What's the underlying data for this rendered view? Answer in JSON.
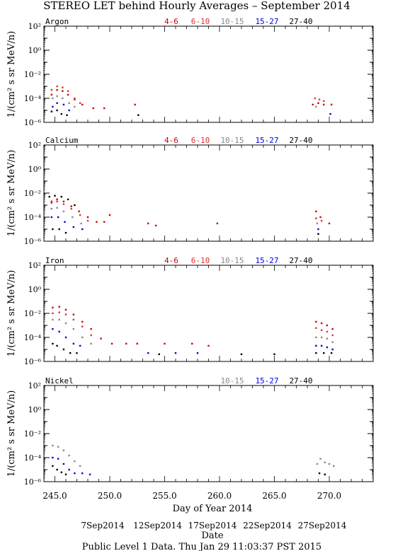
{
  "title": "STEREO LET behind Hourly Averages – September 2014",
  "ylabel": "1/(cm² s sr MeV/n)",
  "xlabel": "Day of Year 2014",
  "date_label": "Date",
  "footer": "Public Level 1 Data. Thu Jan 29 11:03:37 PST 2015",
  "x_ticks": [
    "245.0",
    "250.0",
    "255.0",
    "260.0",
    "265.0",
    "270.0"
  ],
  "date_ticks": [
    "7Sep2014",
    "12Sep2014",
    "17Sep2014",
    "22Sep2014",
    "27Sep2014"
  ],
  "colors": {
    "4-6": "#cc0000",
    "6-10": "#e23030",
    "10-15": "#888888",
    "15-27": "#0000dd",
    "27-40": "#000000"
  },
  "chart_data": [
    {
      "type": "scatter",
      "panel": "Argon",
      "ylabel": "1/(cm² s sr MeV/n)",
      "yscale": "log",
      "ylim": [
        1e-06,
        100
      ],
      "xlim": [
        244.0,
        274.0
      ],
      "y_ticks": [
        "10²",
        "10⁰",
        "10⁻²",
        "10⁻⁴",
        "10⁻⁶"
      ],
      "legend": [
        "4-6",
        "6-10",
        "10-15",
        "15-27",
        "27-40"
      ],
      "series": [
        {
          "name": "4-6",
          "color": "#cc0000",
          "points": [
            [
              244.7,
              0.0002
            ],
            [
              245.2,
              0.0005
            ],
            [
              245.7,
              0.0004
            ],
            [
              246.2,
              0.0002
            ],
            [
              246.8,
              8e-05
            ],
            [
              247.5,
              3e-05
            ],
            [
              248.5,
              1.5e-05
            ],
            [
              249.5,
              1.5e-05
            ],
            [
              252.3,
              3e-05
            ],
            [
              268.5,
              3e-05
            ],
            [
              269.0,
              4e-05
            ],
            [
              269.5,
              3e-05
            ],
            [
              270.2,
              3e-05
            ]
          ]
        },
        {
          "name": "6-10",
          "color": "#e23030",
          "points": [
            [
              244.7,
              0.0005
            ],
            [
              245.2,
              0.001
            ],
            [
              245.7,
              0.0008
            ],
            [
              246.2,
              0.0004
            ],
            [
              246.8,
              0.0001
            ],
            [
              247.3,
              4e-05
            ],
            [
              268.7,
              0.0001
            ],
            [
              269.1,
              8e-05
            ],
            [
              269.5,
              6e-05
            ]
          ]
        },
        {
          "name": "10-15",
          "color": "#888888",
          "points": [
            [
              244.8,
              0.0001
            ],
            [
              245.2,
              0.00015
            ],
            [
              245.7,
              0.0001
            ],
            [
              246.3,
              4e-05
            ],
            [
              246.8,
              2e-05
            ],
            [
              268.8,
              2e-05
            ]
          ]
        },
        {
          "name": "15-27",
          "color": "#0000dd",
          "points": [
            [
              244.8,
              2e-05
            ],
            [
              245.2,
              4e-05
            ],
            [
              245.8,
              3e-05
            ],
            [
              246.3,
              1e-05
            ],
            [
              270.1,
              5e-06
            ]
          ]
        },
        {
          "name": "27-40",
          "color": "#000000",
          "points": [
            [
              244.7,
              8e-06
            ],
            [
              245.2,
              1e-05
            ],
            [
              245.6,
              5e-06
            ],
            [
              246.1,
              4e-06
            ],
            [
              252.6,
              4e-06
            ]
          ]
        }
      ]
    },
    {
      "type": "scatter",
      "panel": "Calcium",
      "ylabel": "1/(cm² s sr MeV/n)",
      "yscale": "log",
      "ylim": [
        1e-06,
        100
      ],
      "xlim": [
        244.0,
        274.0
      ],
      "y_ticks": [
        "10²",
        "10⁰",
        "10⁻²",
        "10⁻⁴",
        "10⁻⁶"
      ],
      "legend": [
        "4-6",
        "6-10",
        "10-15",
        "15-27",
        "27-40"
      ],
      "series": [
        {
          "name": "4-6",
          "color": "#cc0000",
          "points": [
            [
              244.7,
              0.002
            ],
            [
              245.2,
              0.003
            ],
            [
              245.8,
              0.002
            ],
            [
              246.5,
              0.0008
            ],
            [
              247.2,
              0.0003
            ],
            [
              248.0,
              0.0001
            ],
            [
              248.8,
              4e-05
            ],
            [
              249.5,
              4e-05
            ],
            [
              250.0,
              0.00015
            ],
            [
              253.5,
              3e-05
            ],
            [
              254.2,
              2e-05
            ],
            [
              259.8,
              3e-05
            ],
            [
              268.8,
              0.0003
            ],
            [
              269.2,
              0.0001
            ],
            [
              270.0,
              3e-05
            ]
          ]
        },
        {
          "name": "6-10",
          "color": "#e23030",
          "points": [
            [
              244.7,
              0.0015
            ],
            [
              245.2,
              0.002
            ],
            [
              245.8,
              0.0012
            ],
            [
              246.5,
              0.0005
            ],
            [
              247.3,
              0.00015
            ],
            [
              248.0,
              5e-05
            ],
            [
              268.8,
              8e-05
            ],
            [
              269.3,
              5e-05
            ]
          ]
        },
        {
          "name": "10-15",
          "color": "#888888",
          "points": [
            [
              244.7,
              0.0005
            ],
            [
              245.2,
              0.0006
            ],
            [
              245.8,
              0.0003
            ],
            [
              246.6,
              0.0001
            ],
            [
              247.4,
              3e-05
            ],
            [
              268.9,
              3e-05
            ]
          ]
        },
        {
          "name": "15-27",
          "color": "#0000dd",
          "points": [
            [
              244.7,
              0.0001
            ],
            [
              245.3,
              0.0001
            ],
            [
              245.9,
              4e-05
            ],
            [
              246.7,
              1.5e-05
            ],
            [
              247.5,
              1e-05
            ],
            [
              269.0,
              1e-05
            ]
          ]
        },
        {
          "name": "27-40",
          "color": "#000000",
          "points": [
            [
              244.5,
              0.005
            ],
            [
              245.0,
              0.006
            ],
            [
              245.6,
              0.005
            ],
            [
              246.2,
              0.003
            ],
            [
              246.8,
              0.001
            ],
            [
              244.8,
              1e-05
            ],
            [
              245.4,
              1e-05
            ],
            [
              246.0,
              5e-06
            ],
            [
              269.0,
              4e-06
            ]
          ]
        }
      ]
    },
    {
      "type": "scatter",
      "panel": "Iron",
      "ylabel": "1/(cm² s sr MeV/n)",
      "yscale": "log",
      "ylim": [
        1e-06,
        100
      ],
      "xlim": [
        244.0,
        274.0
      ],
      "y_ticks": [
        "10²",
        "10⁰",
        "10⁻²",
        "10⁻⁴",
        "10⁻⁶"
      ],
      "legend": [
        "4-6",
        "6-10",
        "10-15",
        "15-27",
        "27-40"
      ],
      "series": [
        {
          "name": "4-6",
          "color": "#cc0000",
          "points": [
            [
              244.8,
              0.03
            ],
            [
              245.4,
              0.035
            ],
            [
              246.0,
              0.02
            ],
            [
              246.7,
              0.008
            ],
            [
              247.5,
              0.002
            ],
            [
              248.3,
              0.0005
            ],
            [
              249.2,
              8e-05
            ],
            [
              250.2,
              3e-05
            ],
            [
              251.5,
              3e-05
            ],
            [
              252.5,
              3e-05
            ],
            [
              255.0,
              3e-05
            ],
            [
              257.5,
              3e-05
            ],
            [
              259.0,
              2e-05
            ],
            [
              268.8,
              0.002
            ],
            [
              269.3,
              0.0015
            ],
            [
              269.8,
              0.001
            ],
            [
              270.3,
              0.0005
            ]
          ]
        },
        {
          "name": "6-10",
          "color": "#e23030",
          "points": [
            [
              244.8,
              0.01
            ],
            [
              245.4,
              0.012
            ],
            [
              246.0,
              0.008
            ],
            [
              246.7,
              0.003
            ],
            [
              247.5,
              0.0008
            ],
            [
              248.3,
              0.00015
            ],
            [
              268.8,
              0.0006
            ],
            [
              269.3,
              0.0004
            ],
            [
              269.8,
              0.0003
            ],
            [
              270.3,
              0.00015
            ]
          ]
        },
        {
          "name": "10-15",
          "color": "#888888",
          "points": [
            [
              244.8,
              0.003
            ],
            [
              245.4,
              0.003
            ],
            [
              246.0,
              0.0015
            ],
            [
              246.7,
              0.0005
            ],
            [
              247.5,
              0.0001
            ],
            [
              248.3,
              3e-05
            ],
            [
              268.8,
              0.0001
            ],
            [
              269.3,
              0.0001
            ],
            [
              269.8,
              8e-05
            ],
            [
              270.3,
              4e-05
            ]
          ]
        },
        {
          "name": "15-27",
          "color": "#0000dd",
          "points": [
            [
              244.8,
              0.0005
            ],
            [
              245.4,
              0.0003
            ],
            [
              246.0,
              0.0001
            ],
            [
              246.7,
              3e-05
            ],
            [
              247.3,
              2e-05
            ],
            [
              253.5,
              5e-06
            ],
            [
              256.0,
              5e-06
            ],
            [
              258.0,
              5e-06
            ],
            [
              268.8,
              2e-05
            ],
            [
              269.3,
              2e-05
            ],
            [
              269.8,
              1.5e-05
            ],
            [
              270.3,
              1e-05
            ]
          ]
        },
        {
          "name": "27-40",
          "color": "#000000",
          "points": [
            [
              244.8,
              3e-05
            ],
            [
              245.2,
              2e-05
            ],
            [
              245.8,
              1e-05
            ],
            [
              246.4,
              5e-06
            ],
            [
              247.0,
              5e-06
            ],
            [
              254.5,
              4e-06
            ],
            [
              262.0,
              4e-06
            ],
            [
              265.0,
              4e-06
            ],
            [
              268.8,
              5e-06
            ],
            [
              269.5,
              5e-06
            ],
            [
              270.2,
              5e-06
            ]
          ]
        }
      ]
    },
    {
      "type": "scatter",
      "panel": "Nickel",
      "ylabel": "1/(cm² s sr MeV/n)",
      "yscale": "log",
      "ylim": [
        1e-06,
        100
      ],
      "xlim": [
        244.0,
        274.0
      ],
      "y_ticks": [
        "10²",
        "10⁰",
        "10⁻²",
        "10⁻⁴",
        "10⁻⁶"
      ],
      "legend": [
        "10-15",
        "15-27",
        "27-40"
      ],
      "series": [
        {
          "name": "10-15",
          "color": "#888888",
          "points": [
            [
              244.8,
              0.001
            ],
            [
              245.3,
              0.0008
            ],
            [
              245.8,
              0.0004
            ],
            [
              246.3,
              0.00015
            ],
            [
              246.8,
              5e-05
            ],
            [
              247.3,
              2e-05
            ],
            [
              268.9,
              3e-05
            ],
            [
              269.2,
              8e-05
            ],
            [
              269.6,
              4e-05
            ],
            [
              270.0,
              3e-05
            ],
            [
              270.4,
              2e-05
            ]
          ]
        },
        {
          "name": "15-27",
          "color": "#0000dd",
          "points": [
            [
              244.8,
              0.0001
            ],
            [
              245.3,
              8e-05
            ],
            [
              245.8,
              3e-05
            ],
            [
              246.3,
              1e-05
            ],
            [
              246.8,
              5e-06
            ],
            [
              247.5,
              5e-06
            ],
            [
              248.2,
              4e-06
            ]
          ]
        },
        {
          "name": "27-40",
          "color": "#000000",
          "points": [
            [
              244.8,
              2e-05
            ],
            [
              245.2,
              1e-05
            ],
            [
              245.6,
              6e-06
            ],
            [
              246.0,
              4e-06
            ],
            [
              269.1,
              5e-06
            ],
            [
              269.6,
              4e-06
            ]
          ]
        }
      ]
    }
  ]
}
